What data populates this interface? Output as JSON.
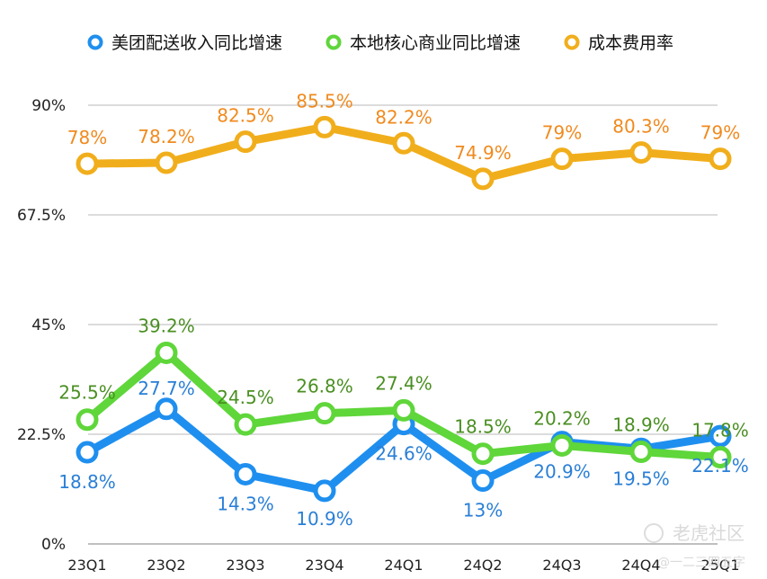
{
  "chart_data": {
    "type": "line",
    "categories": [
      "23Q1",
      "23Q2",
      "23Q3",
      "23Q4",
      "24Q1",
      "24Q2",
      "24Q3",
      "24Q4",
      "25Q1"
    ],
    "y_ticks": [
      "0%",
      "22.5%",
      "45%",
      "67.5%",
      "90%"
    ],
    "ylim": [
      0,
      90
    ],
    "grid": true,
    "legend_position": "top",
    "series": [
      {
        "name": "美团配送收入同比增速",
        "color": "#1f8fef",
        "label_color": "#2a7fd6",
        "values": [
          18.8,
          27.7,
          14.3,
          10.9,
          24.6,
          13,
          20.9,
          19.5,
          22.1
        ],
        "labels": [
          "18.8%",
          "27.7%",
          "14.3%",
          "10.9%",
          "24.6%",
          "13%",
          "20.9%",
          "19.5%",
          "22.1%"
        ]
      },
      {
        "name": "本地核心商业同比增速",
        "color": "#5fd63a",
        "label_color": "#4a8f22",
        "values": [
          25.5,
          39.2,
          24.5,
          26.8,
          27.4,
          18.5,
          20.2,
          18.9,
          17.8
        ],
        "labels": [
          "25.5%",
          "39.2%",
          "24.5%",
          "26.8%",
          "27.4%",
          "18.5%",
          "20.2%",
          "18.9%",
          "17.8%"
        ]
      },
      {
        "name": "成本费用率",
        "color": "#f1ae1c",
        "label_color": "#f08a1e",
        "values": [
          78,
          78.2,
          82.5,
          85.5,
          82.2,
          74.9,
          79,
          80.3,
          79
        ],
        "labels": [
          "78%",
          "78.2%",
          "82.5%",
          "85.5%",
          "82.2%",
          "74.9%",
          "79%",
          "80.3%",
          "79%"
        ]
      }
    ]
  },
  "watermark": {
    "text": "老虎社区",
    "sub": "@一二三四五字"
  }
}
